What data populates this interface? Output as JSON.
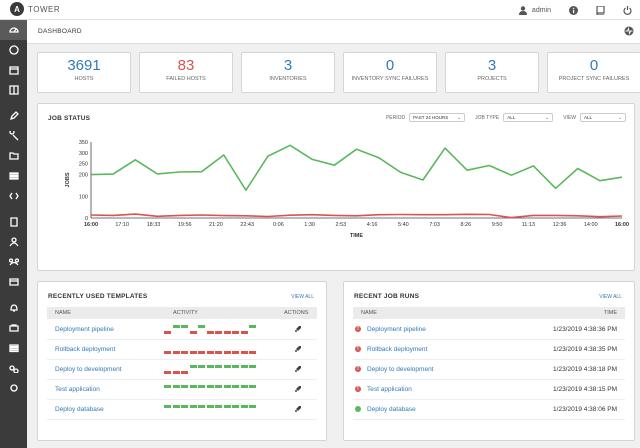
{
  "app": {
    "logo_letter": "A",
    "name": "TOWER"
  },
  "topbar": {
    "user": "admin",
    "icons": [
      "user-icon",
      "info-icon",
      "docs-icon",
      "power-icon"
    ]
  },
  "sidebar": {
    "icons": [
      "dashboard-icon",
      "jobs-icon",
      "schedules-icon",
      "portal-icon",
      "templates-icon",
      "credentials-icon",
      "projects-icon",
      "inventories-icon",
      "inventory-scripts-icon",
      "organizations-icon",
      "users-icon",
      "teams-icon",
      "credential-types-icon",
      "notifications-icon",
      "management-jobs-icon",
      "instance-groups-icon",
      "applications-icon",
      "settings-icon"
    ]
  },
  "breadcrumb": {
    "label": "DASHBOARD"
  },
  "counts": [
    {
      "value": "3691",
      "label": "HOSTS",
      "color": "#337ab7"
    },
    {
      "value": "83",
      "label": "FAILED HOSTS",
      "color": "#d9534f"
    },
    {
      "value": "3",
      "label": "INVENTORIES",
      "color": "#337ab7"
    },
    {
      "value": "0",
      "label": "INVENTORY SYNC FAILURES",
      "color": "#337ab7"
    },
    {
      "value": "3",
      "label": "PROJECTS",
      "color": "#337ab7"
    },
    {
      "value": "0",
      "label": "PROJECT SYNC FAILURES",
      "color": "#337ab7"
    }
  ],
  "job_status": {
    "title": "JOB STATUS",
    "period_label": "PERIOD",
    "period_value": "PAST 24 HOURS",
    "job_type_label": "JOB TYPE",
    "job_type_value": "ALL",
    "view_label": "VIEW",
    "view_value": "ALL"
  },
  "chart_data": {
    "type": "line",
    "xlabel": "TIME",
    "ylabel": "JOBS",
    "ylim": [
      0,
      350
    ],
    "yticks": [
      "0",
      "100",
      "200",
      "250",
      "300",
      "350"
    ],
    "x_tick_labels": [
      "16:00",
      "17:10",
      "18:33",
      "19:56",
      "21:20",
      "22:43",
      "0:06",
      "1:30",
      "2:53",
      "4:16",
      "5:40",
      "7:03",
      "8:26",
      "9:50",
      "11:13",
      "12:36",
      "14:00",
      "16:00"
    ],
    "grid": false,
    "series": [
      {
        "color": "#5cb85c",
        "values": [
          200,
          202,
          268,
          203,
          212,
          213,
          290,
          128,
          285,
          335,
          270,
          243,
          317,
          278,
          210,
          175,
          322,
          220,
          242,
          197,
          240,
          137,
          228,
          172,
          188
        ]
      },
      {
        "color": "#d9534f",
        "values": [
          14,
          12,
          18,
          8,
          12,
          14,
          11,
          10,
          7,
          13,
          15,
          12,
          10,
          15,
          16,
          15,
          15,
          17,
          16,
          2,
          12,
          12,
          10,
          6,
          9
        ]
      }
    ]
  },
  "templates": {
    "title": "RECENTLY USED TEMPLATES",
    "view_all": "VIEW ALL",
    "columns": [
      "NAME",
      "ACTIVITY",
      "ACTIONS"
    ],
    "rows": [
      {
        "name": "Deployment pipeline",
        "activity": [
          "f",
          "s",
          "s",
          "f",
          "s",
          "f",
          "f",
          "f",
          "f",
          "f",
          "s"
        ]
      },
      {
        "name": "Rollback deployment",
        "activity": [
          "f",
          "f",
          "f",
          "f",
          "f",
          "f",
          "f",
          "f",
          "f",
          "f",
          "f"
        ]
      },
      {
        "name": "Deploy to development",
        "activity": [
          "f",
          "f",
          "f",
          "s",
          "s",
          "s",
          "s",
          "s",
          "s",
          "s",
          "s"
        ]
      },
      {
        "name": "Test application",
        "activity": [
          "s",
          "s",
          "s",
          "s",
          "s",
          "s",
          "s",
          "s",
          "s",
          "s",
          "s"
        ]
      },
      {
        "name": "Deploy database",
        "activity": [
          "s",
          "s",
          "s",
          "s",
          "s",
          "s",
          "s",
          "s",
          "s",
          "s",
          "s"
        ]
      }
    ]
  },
  "job_runs": {
    "title": "RECENT JOB RUNS",
    "view_all": "VIEW ALL",
    "columns": [
      "NAME",
      "TIME"
    ],
    "rows": [
      {
        "name": "Deployment pipeline",
        "time": "1/23/2019 4:38:36 PM",
        "status": "failed"
      },
      {
        "name": "Rollback deployment",
        "time": "1/23/2019 4:38:35 PM",
        "status": "failed"
      },
      {
        "name": "Deploy to development",
        "time": "1/23/2019 4:38:18 PM",
        "status": "failed"
      },
      {
        "name": "Test application",
        "time": "1/23/2019 4:38:15 PM",
        "status": "failed"
      },
      {
        "name": "Deploy database",
        "time": "1/23/2019 4:38:06 PM",
        "status": "successful"
      }
    ]
  },
  "colors": {
    "success": "#5cb85c",
    "failed": "#d9534f",
    "accent": "#337ab7",
    "sidebar": "#3b3b3b"
  }
}
